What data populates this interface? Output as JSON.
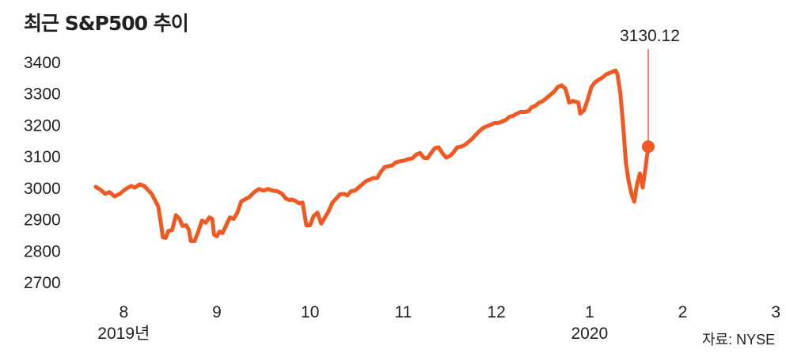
{
  "title": "최근 S&P500 추이",
  "source": "자료: NYSE",
  "colors": {
    "line": "#f05a22",
    "text": "#231f20"
  },
  "chart_data": {
    "type": "line",
    "title": "최근 S&P500 추이",
    "ylim": [
      2700,
      3400
    ],
    "yticks": [
      "3400",
      "3300",
      "3200",
      "3100",
      "3000",
      "2900",
      "2800",
      "2700"
    ],
    "grid": false,
    "legend": "none",
    "x_labels": [
      {
        "label": "8",
        "sublabel": "2019년",
        "x": 0.3
      },
      {
        "label": "9",
        "sublabel": "",
        "x": 1.3
      },
      {
        "label": "10",
        "sublabel": "",
        "x": 2.3
      },
      {
        "label": "11",
        "sublabel": "",
        "x": 3.3
      },
      {
        "label": "12",
        "sublabel": "",
        "x": 4.3
      },
      {
        "label": "1",
        "sublabel": "2020",
        "x": 5.3
      },
      {
        "label": "2",
        "sublabel": "",
        "x": 6.3
      },
      {
        "label": "3",
        "sublabel": "",
        "x": 7.3
      }
    ],
    "last_value_label": "3130.12",
    "series": [
      {
        "values": [
          [
            0.0,
            3002
          ],
          [
            0.05,
            2993
          ],
          [
            0.1,
            2980
          ],
          [
            0.15,
            2985
          ],
          [
            0.2,
            2972
          ],
          [
            0.25,
            2978
          ],
          [
            0.32,
            2995
          ],
          [
            0.38,
            3005
          ],
          [
            0.42,
            3000
          ],
          [
            0.47,
            3010
          ],
          [
            0.52,
            3005
          ],
          [
            0.6,
            2980
          ],
          [
            0.67,
            2940
          ],
          [
            0.7,
            2885
          ],
          [
            0.72,
            2842
          ],
          [
            0.75,
            2840
          ],
          [
            0.78,
            2862
          ],
          [
            0.82,
            2865
          ],
          [
            0.86,
            2912
          ],
          [
            0.9,
            2900
          ],
          [
            0.93,
            2878
          ],
          [
            0.97,
            2880
          ],
          [
            1.0,
            2865
          ],
          [
            1.02,
            2830
          ],
          [
            1.06,
            2830
          ],
          [
            1.1,
            2860
          ],
          [
            1.14,
            2895
          ],
          [
            1.18,
            2888
          ],
          [
            1.22,
            2905
          ],
          [
            1.25,
            2900
          ],
          [
            1.27,
            2850
          ],
          [
            1.3,
            2845
          ],
          [
            1.33,
            2860
          ],
          [
            1.36,
            2855
          ],
          [
            1.4,
            2880
          ],
          [
            1.44,
            2905
          ],
          [
            1.48,
            2900
          ],
          [
            1.52,
            2920
          ],
          [
            1.56,
            2955
          ],
          [
            1.6,
            2962
          ],
          [
            1.65,
            2970
          ],
          [
            1.7,
            2985
          ],
          [
            1.75,
            2995
          ],
          [
            1.8,
            2990
          ],
          [
            1.85,
            2995
          ],
          [
            1.9,
            2990
          ],
          [
            1.95,
            2988
          ],
          [
            2.0,
            2980
          ],
          [
            2.04,
            2965
          ],
          [
            2.08,
            2960
          ],
          [
            2.1,
            2962
          ],
          [
            2.14,
            2958
          ],
          [
            2.18,
            2950
          ],
          [
            2.22,
            2952
          ],
          [
            2.26,
            2880
          ],
          [
            2.3,
            2880
          ],
          [
            2.34,
            2910
          ],
          [
            2.38,
            2920
          ],
          [
            2.42,
            2885
          ],
          [
            2.46,
            2905
          ],
          [
            2.5,
            2925
          ],
          [
            2.54,
            2952
          ],
          [
            2.58,
            2965
          ],
          [
            2.62,
            2978
          ],
          [
            2.66,
            2980
          ],
          [
            2.7,
            2975
          ],
          [
            2.74,
            2988
          ],
          [
            2.78,
            2990
          ],
          [
            2.82,
            3000
          ],
          [
            2.86,
            3010
          ],
          [
            2.9,
            3020
          ],
          [
            2.94,
            3025
          ],
          [
            2.98,
            3030
          ],
          [
            3.02,
            3030
          ],
          [
            3.06,
            3050
          ],
          [
            3.1,
            3065
          ],
          [
            3.14,
            3068
          ],
          [
            3.18,
            3070
          ],
          [
            3.22,
            3080
          ],
          [
            3.26,
            3083
          ],
          [
            3.3,
            3085
          ],
          [
            3.35,
            3090
          ],
          [
            3.4,
            3093
          ],
          [
            3.44,
            3105
          ],
          [
            3.48,
            3110
          ],
          [
            3.52,
            3095
          ],
          [
            3.56,
            3093
          ],
          [
            3.6,
            3110
          ],
          [
            3.64,
            3125
          ],
          [
            3.68,
            3128
          ],
          [
            3.72,
            3110
          ],
          [
            3.76,
            3095
          ],
          [
            3.8,
            3100
          ],
          [
            3.84,
            3112
          ],
          [
            3.88,
            3128
          ],
          [
            3.92,
            3130
          ],
          [
            3.96,
            3135
          ],
          [
            4.0,
            3145
          ],
          [
            4.04,
            3155
          ],
          [
            4.08,
            3168
          ],
          [
            4.12,
            3180
          ],
          [
            4.16,
            3190
          ],
          [
            4.2,
            3195
          ],
          [
            4.24,
            3200
          ],
          [
            4.28,
            3205
          ],
          [
            4.32,
            3205
          ],
          [
            4.36,
            3210
          ],
          [
            4.4,
            3215
          ],
          [
            4.44,
            3225
          ],
          [
            4.48,
            3228
          ],
          [
            4.52,
            3235
          ],
          [
            4.56,
            3240
          ],
          [
            4.6,
            3240
          ],
          [
            4.64,
            3242
          ],
          [
            4.68,
            3255
          ],
          [
            4.72,
            3260
          ],
          [
            4.76,
            3270
          ],
          [
            4.8,
            3275
          ],
          [
            4.84,
            3285
          ],
          [
            4.88,
            3295
          ],
          [
            4.92,
            3305
          ],
          [
            4.96,
            3320
          ],
          [
            5.0,
            3325
          ],
          [
            5.04,
            3315
          ],
          [
            5.06,
            3295
          ],
          [
            5.08,
            3270
          ],
          [
            5.12,
            3275
          ],
          [
            5.16,
            3272
          ],
          [
            5.18,
            3270
          ],
          [
            5.2,
            3235
          ],
          [
            5.24,
            3245
          ],
          [
            5.28,
            3280
          ],
          [
            5.32,
            3320
          ],
          [
            5.36,
            3335
          ],
          [
            5.4,
            3343
          ],
          [
            5.44,
            3350
          ],
          [
            5.48,
            3360
          ],
          [
            5.52,
            3365
          ],
          [
            5.56,
            3370
          ],
          [
            5.58,
            3372
          ],
          [
            5.6,
            3360
          ],
          [
            5.63,
            3300
          ],
          [
            5.66,
            3200
          ],
          [
            5.69,
            3080
          ],
          [
            5.72,
            3020
          ],
          [
            5.75,
            2980
          ],
          [
            5.78,
            2955
          ],
          [
            5.81,
            3010
          ],
          [
            5.84,
            3045
          ],
          [
            5.87,
            3000
          ],
          [
            5.9,
            3060
          ],
          [
            5.93,
            3130
          ]
        ]
      }
    ]
  }
}
